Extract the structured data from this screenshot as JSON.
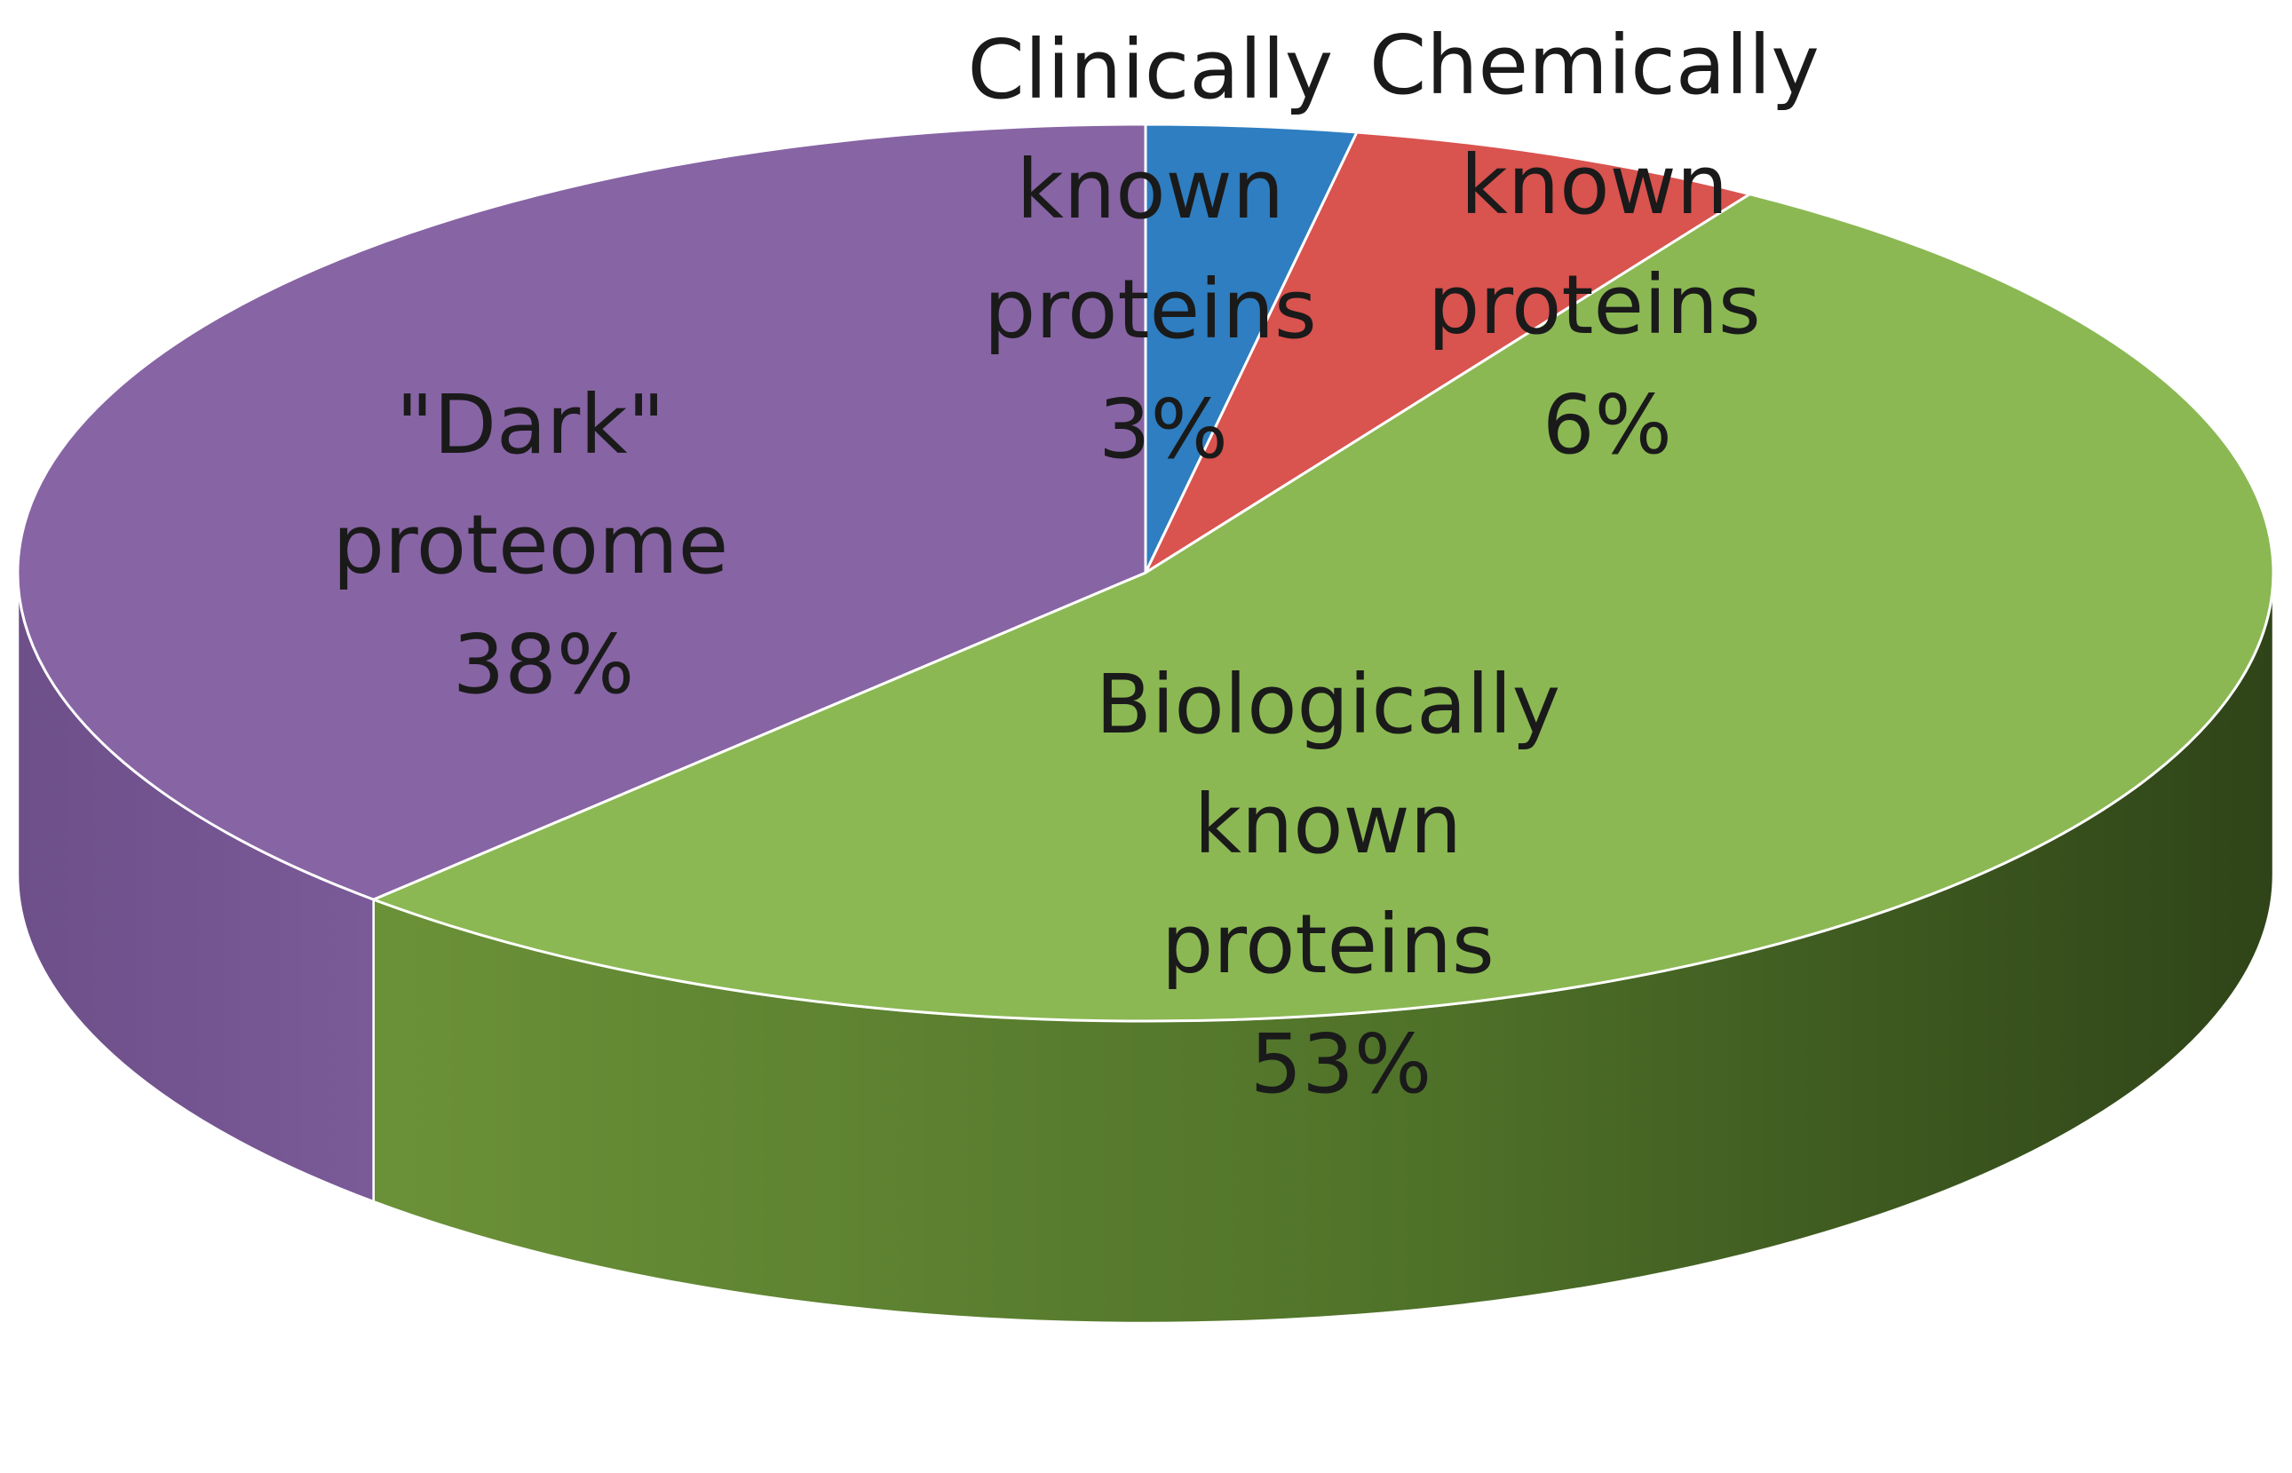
{
  "chart_data": {
    "type": "pie",
    "style": "3d",
    "title": "",
    "slices": [
      {
        "label": "Clinically known proteins",
        "label_lines": [
          "Clinically",
          "known",
          "proteins"
        ],
        "value": 3,
        "value_label": "3%",
        "color": "#2e7ec1",
        "side_color": "#1f5a8c"
      },
      {
        "label": "Chemically known proteins",
        "label_lines": [
          "Chemically",
          "known",
          "proteins"
        ],
        "value": 6,
        "value_label": "6%",
        "color": "#d9534f",
        "side_color": "#9c3330"
      },
      {
        "label": "Biologically known proteins",
        "label_lines": [
          "Biologically",
          "known",
          "proteins"
        ],
        "value": 53,
        "value_label": "53%",
        "color": "#8bb853",
        "side_color": "#567a2e"
      },
      {
        "label": "\"Dark\" proteome",
        "label_lines": [
          "\"Dark\"",
          "proteome"
        ],
        "value": 38,
        "value_label": "38%",
        "color": "#8764a4",
        "side_color": "#6a4c86"
      }
    ]
  }
}
